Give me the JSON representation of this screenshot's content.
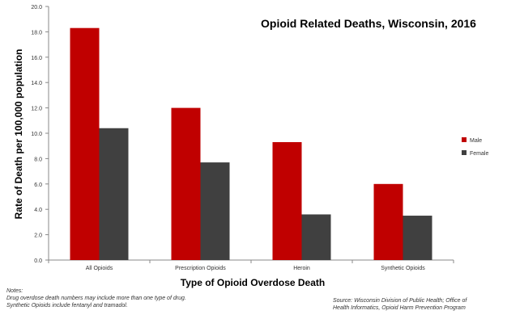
{
  "chart_data": {
    "type": "bar",
    "title": "Opioid Related Deaths, Wisconsin, 2016",
    "xlabel": "Type of Opioid Overdose Death",
    "ylabel": "Rate of Death per 100,000 population",
    "ylim": [
      0,
      20
    ],
    "yticks": [
      "0.0",
      "2.0",
      "4.0",
      "6.0",
      "8.0",
      "10.0",
      "12.0",
      "14.0",
      "16.0",
      "18.0",
      "20.0"
    ],
    "categories": [
      "All Opioids",
      "Prescription Opioids",
      "Heroin",
      "Synthetic Opioids"
    ],
    "series": [
      {
        "name": "Male",
        "color": "#c00000",
        "values": [
          18.3,
          12.0,
          9.3,
          6.0
        ]
      },
      {
        "name": "Female",
        "color": "#404040",
        "values": [
          10.4,
          7.7,
          3.6,
          3.5
        ]
      }
    ],
    "grid": false,
    "legend": "right"
  },
  "notes": {
    "heading": "Notes:",
    "line1": "Drug overdose death numbers may include more than one type of drug.",
    "line2": "Synthetic Opioids include fentanyl and tramadol."
  },
  "source": {
    "line1": "Source: Wisconsin Division of Public Health; Office of",
    "line2": "Health Informatics, Opioid Harm Prevention Program"
  }
}
